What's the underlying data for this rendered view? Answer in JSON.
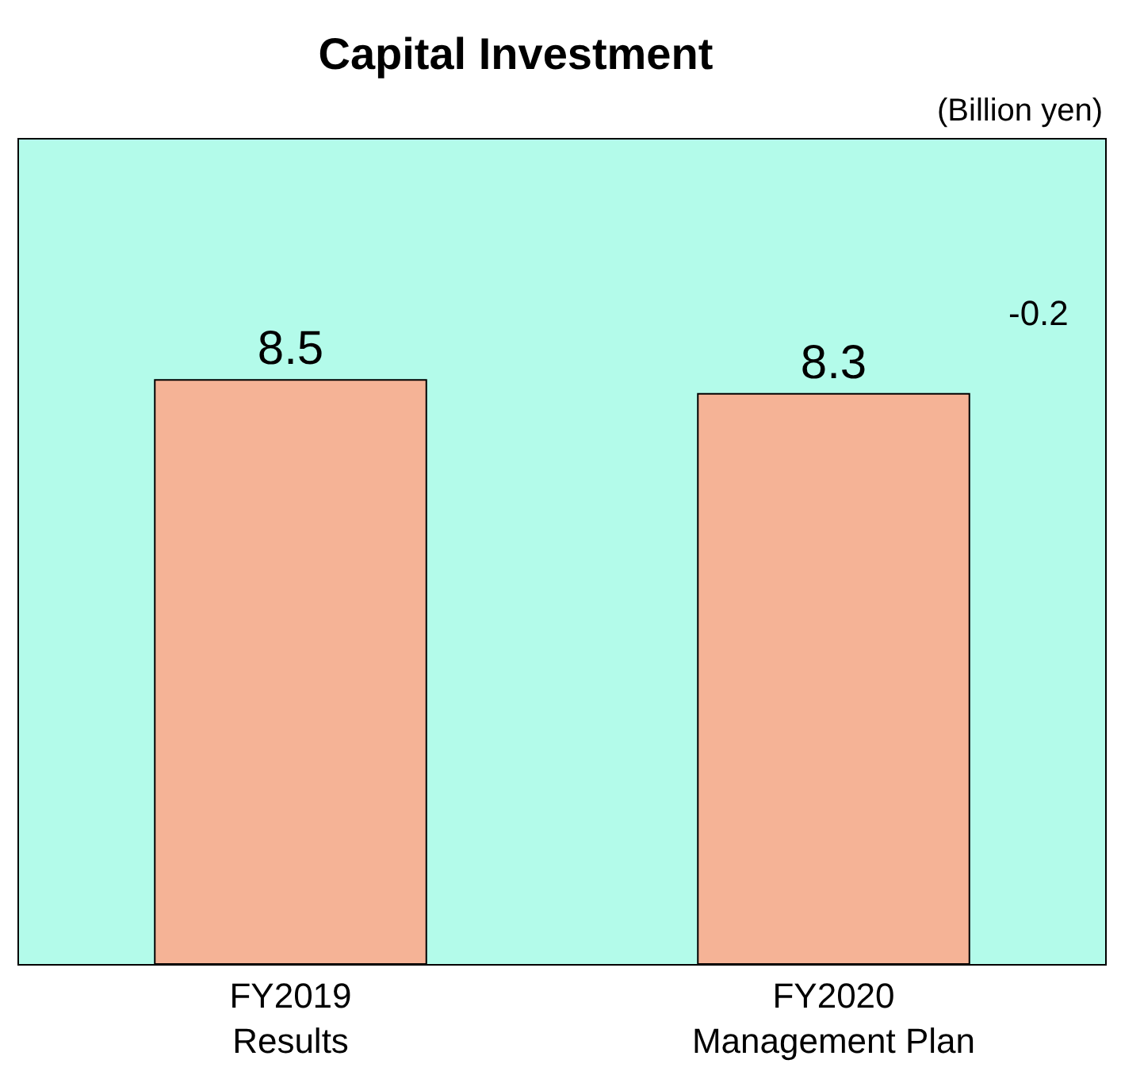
{
  "chart_data": {
    "type": "bar",
    "title": "Capital Investment",
    "categories": [
      "FY2019\nResults",
      "FY2020\nManagement Plan"
    ],
    "values": [
      8.5,
      8.3
    ],
    "colors": [
      "#f5b396",
      "#f5b396"
    ],
    "ylim": [
      0,
      12
    ],
    "tick_labels": "x",
    "data_labels": true,
    "annotations": [
      "(Billion yen)",
      "-0.2"
    ]
  }
}
